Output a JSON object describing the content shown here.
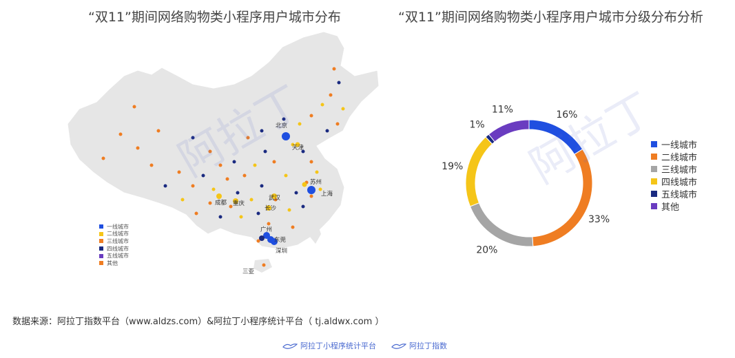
{
  "titles": {
    "left": "“双11”期间网络购物类小程序用户城市分布",
    "right": "“双11”期间网络购物类小程序用户城市分级分布分析"
  },
  "map": {
    "legend": [
      {
        "label": "一线城市",
        "color": "#1f4fe0"
      },
      {
        "label": "二线城市",
        "color": "#f5c518"
      },
      {
        "label": "三线城市",
        "color": "#ef7d22"
      },
      {
        "label": "四线城市",
        "color": "#1a2a80"
      },
      {
        "label": "五线城市",
        "color": "#6a3cc0"
      },
      {
        "label": "其他",
        "color": "#ef7d22"
      }
    ],
    "city_labels": {
      "beijing": "北京",
      "tianjin": "天津",
      "suzhou": "苏州",
      "shanghai": "上海",
      "wuhan": "武汉",
      "chengdu": "成都",
      "chongqing": "重庆",
      "changsha": "长沙",
      "guangzhou": "广州",
      "dongguan": "东莞",
      "shenzhen": "深圳",
      "sanya": "三亚"
    }
  },
  "chart_data": {
    "type": "pie",
    "donut": true,
    "title": "“双11”期间网络购物类小程序用户城市分级分布分析",
    "categories": [
      "一线城市",
      "二线城市",
      "三线城市",
      "四线城市",
      "五线城市",
      "其他"
    ],
    "values": [
      16,
      33,
      20,
      19,
      1,
      11
    ],
    "labels": [
      "16%",
      "33%",
      "20%",
      "19%",
      "1%",
      "11%"
    ],
    "colors": [
      "#1f4fe0",
      "#ef7d22",
      "#a5a5a5",
      "#f5c518",
      "#1a2a80",
      "#6a3cc0"
    ],
    "legend_position": "right"
  },
  "source": "数据来源：阿拉丁指数平台（www.aldzs.com）&阿拉丁小程序统计平台（ tj.aldwx.com ）",
  "footer": {
    "brand1": "阿拉丁小程序统计平台",
    "brand2": "阿拉丁指数"
  },
  "watermark": "阿拉丁"
}
